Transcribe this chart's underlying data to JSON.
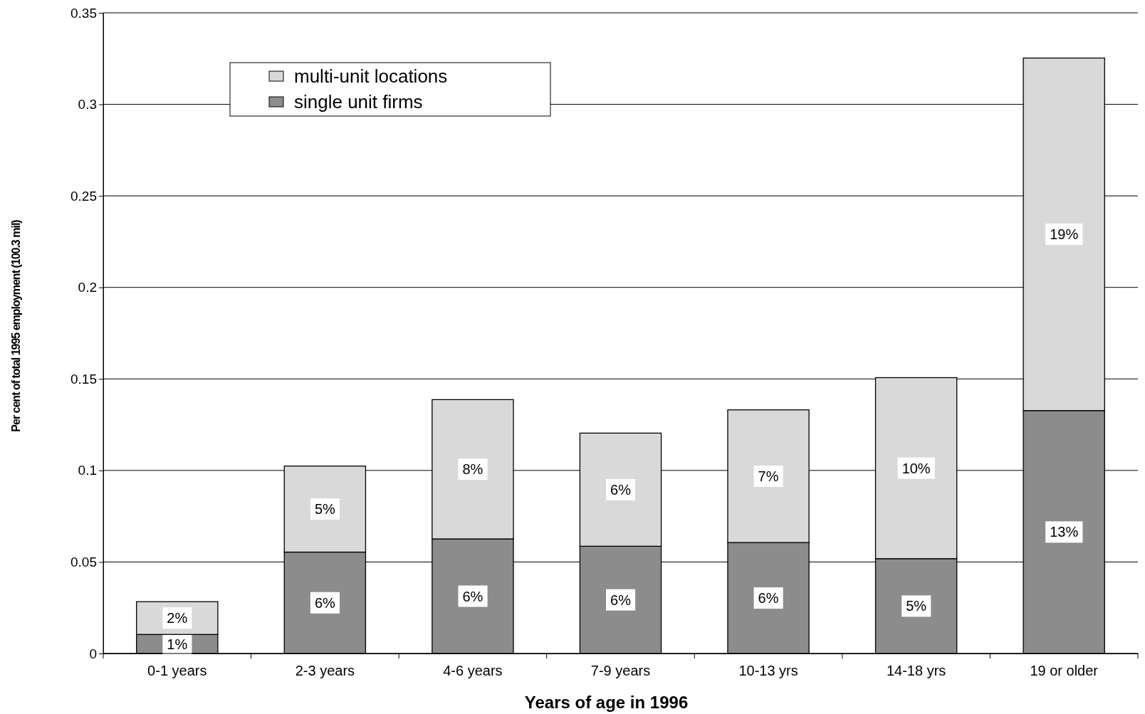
{
  "chart_data": {
    "type": "bar",
    "stacked": true,
    "xlabel": "Years of age in 1996",
    "ylabel": "Per cent of total 1995 employment (100.3 mil)",
    "categories": [
      "0-1 years",
      "2-3 years",
      "4-6 years",
      "7-9 years",
      "10-13 yrs",
      "14-18 yrs",
      "19 or older"
    ],
    "series": [
      {
        "name": "single unit firms",
        "color": "#8c8c8c",
        "values": [
          0.0104,
          0.0554,
          0.0626,
          0.0586,
          0.0606,
          0.0518,
          0.1327
        ],
        "value_labels": [
          "1%",
          "6%",
          "6%",
          "6%",
          "6%",
          "5%",
          "13%"
        ]
      },
      {
        "name": "multi-unit locations",
        "color": "#d9d9d9",
        "values": [
          0.0179,
          0.047,
          0.0761,
          0.0618,
          0.0725,
          0.0989,
          0.1926
        ],
        "value_labels": [
          "2%",
          "5%",
          "8%",
          "6%",
          "7%",
          "10%",
          "19%"
        ]
      }
    ],
    "ylim": [
      0,
      0.35
    ],
    "yticks": [
      0,
      0.05,
      0.1,
      0.15,
      0.2,
      0.25,
      0.3,
      0.35
    ],
    "grid": "y",
    "legend": "top left"
  }
}
